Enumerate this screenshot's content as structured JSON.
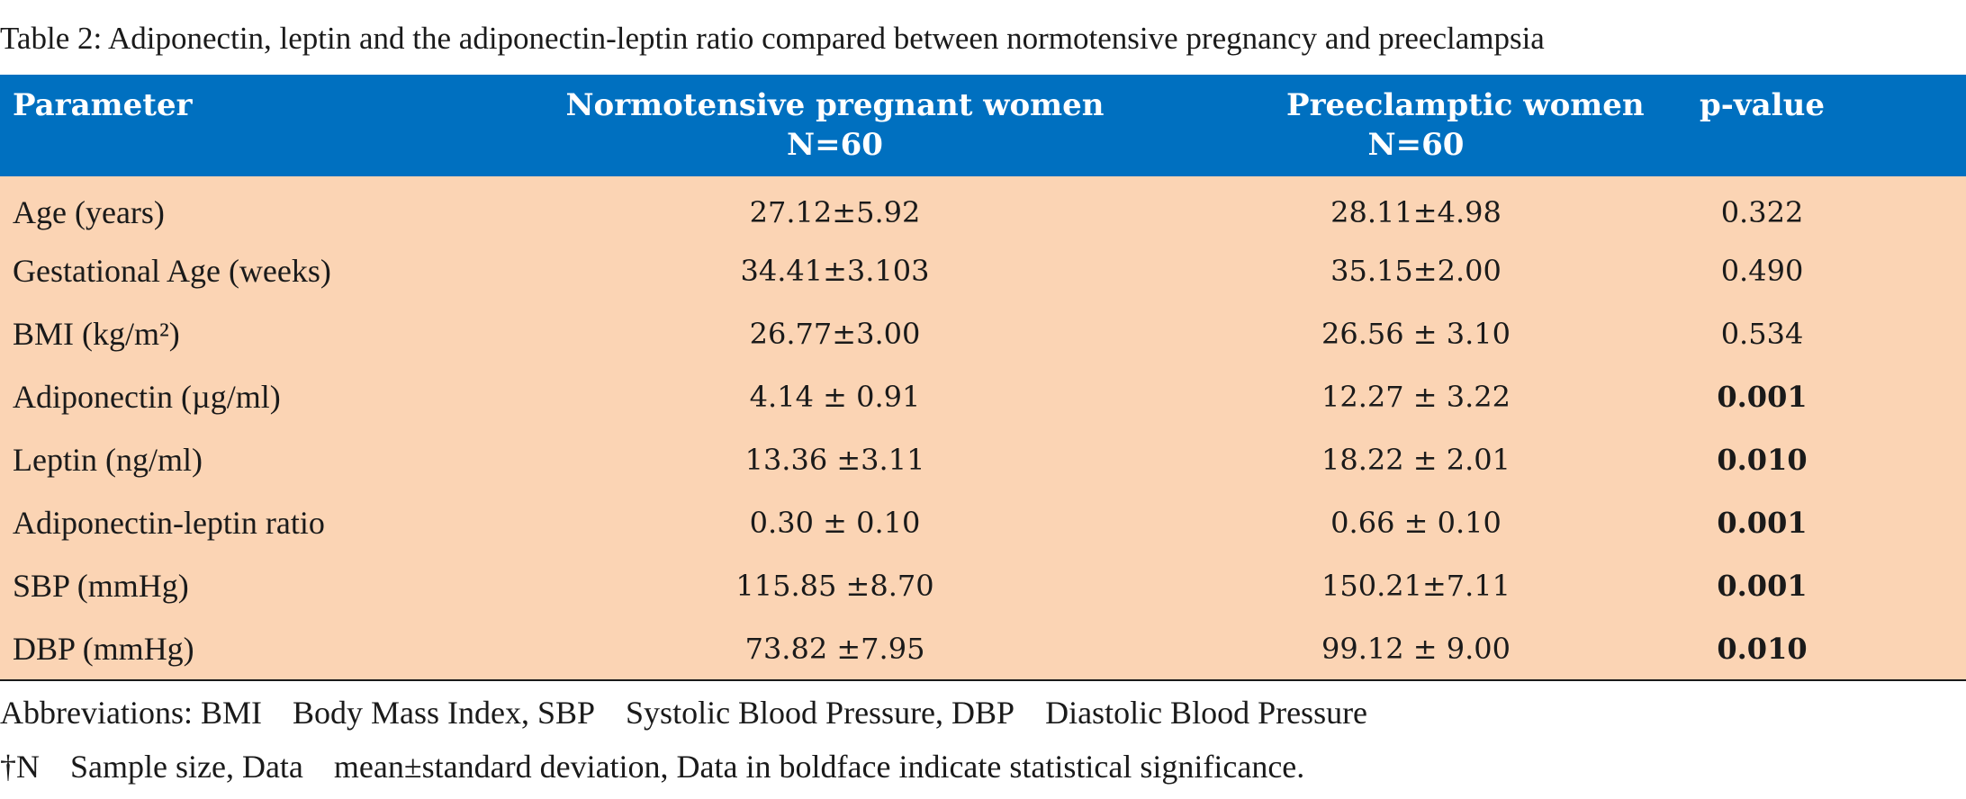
{
  "caption": "Table 2: Adiponectin, leptin and the adiponectin-leptin ratio compared between normotensive pregnancy and preeclampsia",
  "colors": {
    "header_bg": "#0070c0",
    "header_text": "#ffffff",
    "body_bg": "#fbd4b4"
  },
  "table": {
    "headers": {
      "parameter": "Parameter",
      "normo_line1": "Normotensive pregnant women",
      "normo_line2": "N=60",
      "pre_line1": "Preeclamptic women",
      "pre_line2": "N=60",
      "pvalue": "p-value"
    },
    "rows": [
      {
        "parameter": "Age (years)",
        "normotensive": "27.12±5.92",
        "preeclamptic": "28.11±4.98",
        "p_value": "0.322",
        "significant": false
      },
      {
        "parameter": "Gestational Age (weeks)",
        "normotensive": "34.41±3.103",
        "preeclamptic": "35.15±2.00",
        "p_value": "0.490",
        "significant": false
      },
      {
        "parameter": "BMI (kg/m²)",
        "normotensive": "26.77±3.00",
        "preeclamptic": "26.56 ± 3.10",
        "p_value": "0.534",
        "significant": false
      },
      {
        "parameter": "Adiponectin (µg/ml)",
        "normotensive": "4.14 ± 0.91",
        "preeclamptic": "12.27 ± 3.22",
        "p_value": "0.001",
        "significant": true
      },
      {
        "parameter": "Leptin (ng/ml)",
        "normotensive": "13.36 ±3.11",
        "preeclamptic": "18.22 ± 2.01",
        "p_value": "0.010",
        "significant": true
      },
      {
        "parameter": "Adiponectin-leptin ratio",
        "normotensive": "0.30 ± 0.10",
        "preeclamptic": "0.66 ± 0.10",
        "p_value": "0.001",
        "significant": true
      },
      {
        "parameter": "SBP (mmHg)",
        "normotensive": "115.85 ±8.70",
        "preeclamptic": "150.21±7.11",
        "p_value": "0.001",
        "significant": true
      },
      {
        "parameter": "DBP (mmHg)",
        "normotensive": "73.82 ±7.95",
        "preeclamptic": "99.12 ± 9.00",
        "p_value": "0.010",
        "significant": true
      }
    ]
  },
  "footnotes": {
    "abbreviations": [
      "Abbreviations: BMI",
      "Body Mass Index, SBP",
      "Systolic Blood Pressure, DBP",
      "Diastolic Blood Pressure"
    ],
    "notes": [
      "†N",
      "Sample size, Data",
      "mean±standard deviation, Data in boldface indicate statistical significance."
    ]
  }
}
